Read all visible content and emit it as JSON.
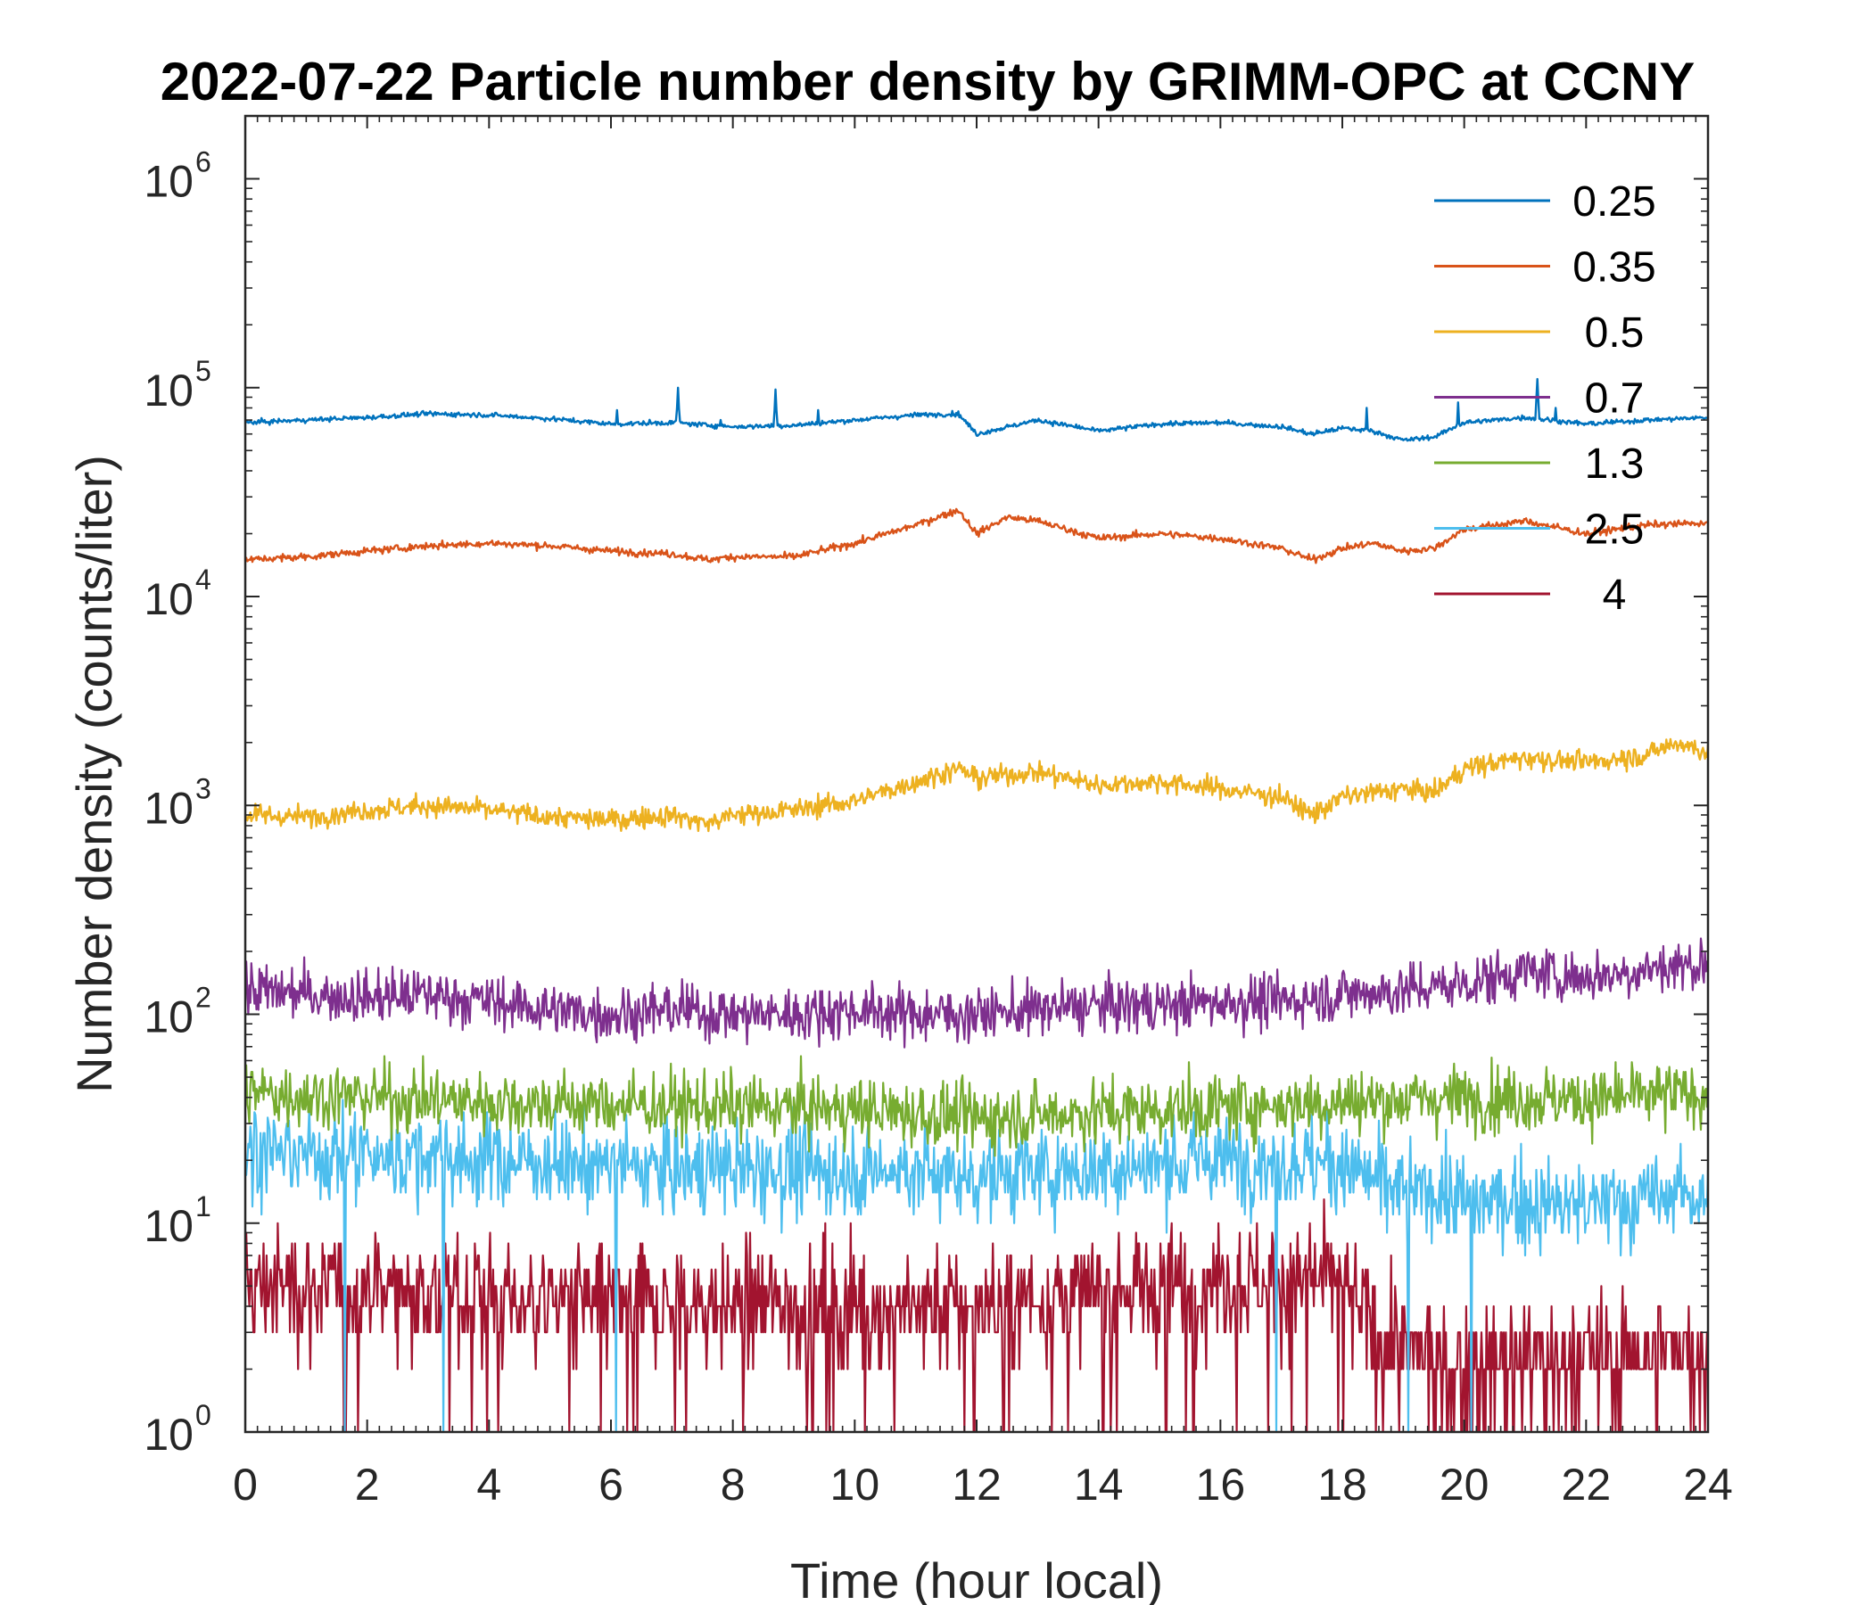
{
  "chart_data": {
    "type": "line",
    "title": "2022-07-22 Particle number density by GRIMM-OPC at CCNY",
    "xlabel": "Time (hour local)",
    "ylabel": "Number density (counts/liter)",
    "xlim": [
      0,
      24
    ],
    "ylim": [
      1,
      2000000
    ],
    "yscale": "log",
    "xticks": [
      "0",
      "2",
      "4",
      "6",
      "8",
      "10",
      "12",
      "14",
      "16",
      "18",
      "20",
      "22",
      "24"
    ],
    "yticks": [
      {
        "base": "10",
        "exp": "0"
      },
      {
        "base": "10",
        "exp": "1"
      },
      {
        "base": "10",
        "exp": "2"
      },
      {
        "base": "10",
        "exp": "3"
      },
      {
        "base": "10",
        "exp": "4"
      },
      {
        "base": "10",
        "exp": "5"
      },
      {
        "base": "10",
        "exp": "6"
      }
    ],
    "grid": false,
    "legend_position": "top-right",
    "series": [
      {
        "name": "0.25",
        "color": "#0072BD",
        "x": [
          0,
          1,
          2,
          3,
          4,
          5,
          6,
          7,
          8,
          9,
          10,
          11,
          11.7,
          12,
          13,
          14,
          15,
          16,
          17,
          17.5,
          18,
          18.5,
          19,
          19.5,
          20,
          21,
          22,
          23,
          24
        ],
        "values": [
          68000,
          70000,
          72000,
          75000,
          74000,
          71000,
          67000,
          68000,
          65000,
          66000,
          70000,
          74000,
          75000,
          60000,
          70000,
          62000,
          67000,
          68000,
          65000,
          60000,
          64000,
          62000,
          56000,
          58000,
          68000,
          72000,
          67000,
          70000,
          72000
        ],
        "spikes": [
          {
            "x": 6.1,
            "y": 78000
          },
          {
            "x": 7.1,
            "y": 100000
          },
          {
            "x": 7.8,
            "y": 70000
          },
          {
            "x": 8.7,
            "y": 98000
          },
          {
            "x": 9.4,
            "y": 78000
          },
          {
            "x": 18.4,
            "y": 80000
          },
          {
            "x": 19.9,
            "y": 85000
          },
          {
            "x": 21.2,
            "y": 110000
          },
          {
            "x": 21.5,
            "y": 80000
          }
        ]
      },
      {
        "name": "0.35",
        "color": "#D95319",
        "x": [
          0,
          1,
          2,
          3,
          4,
          5,
          6,
          7,
          7.6,
          8,
          9,
          10,
          11,
          11.7,
          12,
          12.5,
          13,
          14,
          15,
          16,
          17,
          17.5,
          18,
          18.5,
          19,
          19.5,
          20,
          21,
          22,
          23,
          24
        ],
        "values": [
          15000,
          15500,
          16500,
          17500,
          18000,
          17500,
          16500,
          16000,
          15000,
          15500,
          15500,
          18000,
          22000,
          26000,
          20000,
          24000,
          23000,
          19000,
          20000,
          19000,
          17000,
          15000,
          17000,
          18000,
          16500,
          17000,
          21000,
          23000,
          20000,
          22000,
          22500
        ]
      },
      {
        "name": "0.5",
        "color": "#EDB120",
        "x": [
          0,
          1,
          2,
          3,
          4,
          5,
          6,
          7,
          7.6,
          8,
          9,
          10,
          11,
          11.7,
          12,
          13,
          14,
          15,
          16,
          17,
          17.5,
          18,
          19,
          19.5,
          20,
          21,
          22,
          23,
          23.5,
          24
        ],
        "values": [
          900,
          880,
          950,
          1000,
          950,
          880,
          850,
          900,
          820,
          900,
          950,
          1050,
          1300,
          1500,
          1350,
          1450,
          1250,
          1300,
          1200,
          1100,
          900,
          1100,
          1200,
          1150,
          1500,
          1700,
          1600,
          1750,
          2000,
          1800
        ]
      },
      {
        "name": "0.7",
        "color": "#7E2F8E",
        "x": [
          0,
          1,
          2,
          3,
          4,
          5,
          6,
          7,
          8,
          9,
          10,
          11,
          12,
          13,
          14,
          15,
          16,
          17,
          18,
          19,
          20,
          21,
          22,
          23,
          24
        ],
        "values": [
          130,
          125,
          120,
          125,
          115,
          105,
          100,
          105,
          100,
          100,
          105,
          100,
          100,
          105,
          110,
          110,
          115,
          115,
          125,
          130,
          140,
          160,
          150,
          165,
          175
        ]
      },
      {
        "name": "1.3",
        "color": "#77AC30",
        "x": [
          0,
          2,
          4,
          6,
          8,
          10,
          12,
          14,
          16,
          18,
          20,
          22,
          24
        ],
        "values": [
          42,
          40,
          38,
          37,
          36,
          35,
          32,
          34,
          36,
          38,
          40,
          39,
          42
        ]
      },
      {
        "name": "2.5",
        "color": "#4DBEEE",
        "x": [
          0,
          2,
          4,
          6,
          8,
          10,
          12,
          14,
          16,
          18,
          19,
          20,
          22,
          24
        ],
        "values": [
          22,
          21,
          20,
          19,
          18,
          18,
          17,
          18,
          20,
          19,
          14,
          13,
          12,
          14
        ]
      },
      {
        "name": "4",
        "color": "#A2142F",
        "x": [
          0,
          2,
          4,
          6,
          8,
          10,
          12,
          14,
          16,
          18,
          18.8,
          20,
          22,
          24
        ],
        "values": [
          5,
          5,
          4.5,
          4,
          4,
          4,
          4,
          4.5,
          5.5,
          5,
          2.5,
          2.2,
          2.3,
          2.5
        ]
      }
    ]
  }
}
